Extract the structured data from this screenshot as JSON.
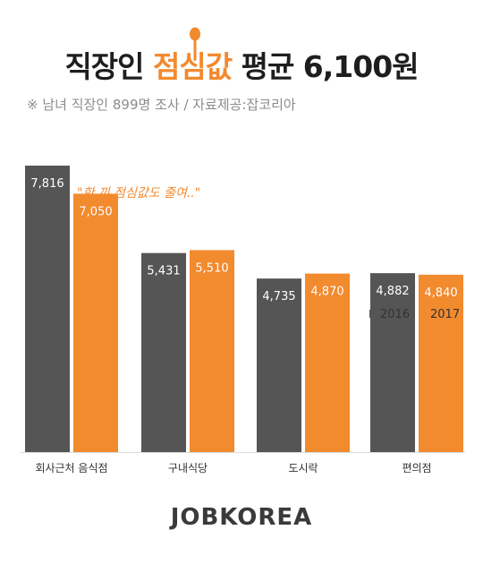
{
  "header": {
    "title_pre": "직장인 ",
    "title_accent": "점심값",
    "title_post": " 평균 6,100원",
    "subtitle": "※ 남녀 직장인 899명  조사  / 자료제공:잡코리아"
  },
  "annotation": "\"한 끼 점심값도 줄여..\"",
  "logo": "JOBKOREA",
  "colors": {
    "series_2016": "#555555",
    "series_2017": "#f28a2e",
    "axis": "#dddddd"
  },
  "chart_data": {
    "type": "bar",
    "title": "직장인 점심값 평균 6,100원",
    "categories": [
      "회사근처 음식점",
      "구내식당",
      "도시락",
      "편의점"
    ],
    "series": [
      {
        "name": "2016",
        "values": [
          7816,
          5431,
          4735,
          4882
        ],
        "labels": [
          "7,816",
          "5,431",
          "4,735",
          "4,882"
        ]
      },
      {
        "name": "2017",
        "values": [
          7050,
          5510,
          4870,
          4840
        ],
        "labels": [
          "7,050",
          "5,510",
          "4,870",
          "4,840"
        ]
      }
    ],
    "ylim": [
      0,
      7816
    ],
    "grid": false,
    "legend": "top-right"
  }
}
